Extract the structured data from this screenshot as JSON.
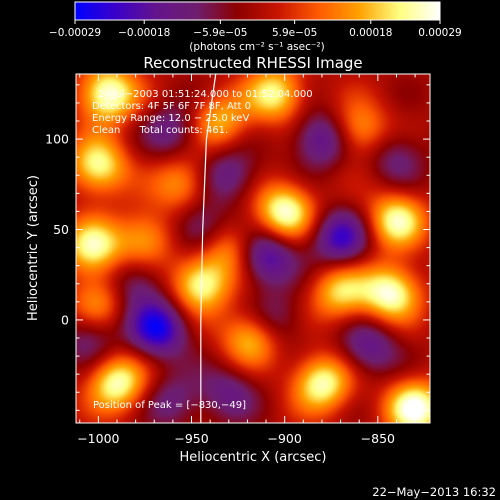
{
  "chart_data": {
    "type": "heatmap",
    "title": "Reconstructed RHESSI Image",
    "xlabel": "Heliocentric X (arcsec)",
    "ylabel": "Heliocentric Y (arcsec)",
    "xlim": [
      -1012,
      -822
    ],
    "ylim": [
      -57,
      136
    ],
    "xticks": [
      -1000,
      -950,
      -900,
      -850
    ],
    "yticks": [
      0,
      50,
      100
    ],
    "colorbar": {
      "unit_label": "(photons cm⁻² s⁻¹ asec⁻²)",
      "range": [
        -0.00029,
        0.00029
      ],
      "ticks": [
        {
          "value": -0.00029,
          "label": "−0.00029"
        },
        {
          "value": -0.00018,
          "label": "−0.00018"
        },
        {
          "value": -5.9e-05,
          "label": "−5.9e−05"
        },
        {
          "value": 5.9e-05,
          "label": "5.9e−05"
        },
        {
          "value": 0.00018,
          "label": "0.00018"
        },
        {
          "value": 0.00029,
          "label": "0.00029"
        }
      ],
      "colors": [
        "#0000ff",
        "#3a00c8",
        "#64148c",
        "#6e1e6e",
        "#8c0000",
        "#c81400",
        "#ff5a00",
        "#ffa000",
        "#ffff80",
        "#ffffff"
      ]
    },
    "info_lines": [
      "2−Jul−2003 01:51:24.000 to 01:52:04.000",
      "Detectors: 4F 5F 6F 7F 8F, Att 0",
      "Energy Range: 12.0 − 25.0 keV",
      "Clean      Total counts: 461."
    ],
    "peak_label": "Position of Peak = [−830,−49]",
    "peak": {
      "x": -830,
      "y": -49
    },
    "limb_curve": [
      {
        "x": -937,
        "y": 136
      },
      {
        "x": -942,
        "y": 100
      },
      {
        "x": -944,
        "y": 50
      },
      {
        "x": -945,
        "y": 0
      },
      {
        "x": -945,
        "y": -57
      }
    ],
    "blobs": [
      {
        "x": -995,
        "y": 125,
        "v": 1.0
      },
      {
        "x": -1000,
        "y": 85,
        "v": 0.85
      },
      {
        "x": -905,
        "y": 125,
        "v": 0.8
      },
      {
        "x": -935,
        "y": 110,
        "v": 0.6
      },
      {
        "x": -860,
        "y": 105,
        "v": 0.6
      },
      {
        "x": -1003,
        "y": 40,
        "v": 0.85
      },
      {
        "x": -990,
        "y": -35,
        "v": 0.9
      },
      {
        "x": -900,
        "y": 60,
        "v": 0.95
      },
      {
        "x": -840,
        "y": 55,
        "v": 0.85
      },
      {
        "x": -843,
        "y": 15,
        "v": 0.95
      },
      {
        "x": -880,
        "y": -35,
        "v": 0.9
      },
      {
        "x": -870,
        "y": 15,
        "v": 0.7
      },
      {
        "x": -930,
        "y": 40,
        "v": 0.55
      },
      {
        "x": -945,
        "y": 20,
        "v": 0.9
      },
      {
        "x": -918,
        "y": -10,
        "v": 0.7
      },
      {
        "x": -975,
        "y": 45,
        "v": 0.6
      },
      {
        "x": -830,
        "y": -49,
        "v": 1.0
      },
      {
        "x": -955,
        "y": 75,
        "v": 0.55
      },
      {
        "x": -1000,
        "y": 10,
        "v": 0.5
      },
      {
        "x": -968,
        "y": -5,
        "v": -0.9
      },
      {
        "x": -910,
        "y": 35,
        "v": -0.75
      },
      {
        "x": -870,
        "y": 45,
        "v": -0.75
      },
      {
        "x": -880,
        "y": 100,
        "v": -0.65
      },
      {
        "x": -930,
        "y": 80,
        "v": -0.5
      },
      {
        "x": -945,
        "y": 50,
        "v": -0.55
      },
      {
        "x": -960,
        "y": 105,
        "v": -0.45
      },
      {
        "x": -855,
        "y": -15,
        "v": -0.55
      },
      {
        "x": -980,
        "y": 20,
        "v": -0.45
      },
      {
        "x": -930,
        "y": -40,
        "v": -0.45
      },
      {
        "x": -1005,
        "y": -10,
        "v": -0.4
      },
      {
        "x": -905,
        "y": 0,
        "v": -0.4
      },
      {
        "x": -840,
        "y": 90,
        "v": -0.4
      },
      {
        "x": -960,
        "y": -45,
        "v": -0.4
      }
    ]
  },
  "footer": {
    "timestamp": "22−May−2013 16:32"
  }
}
